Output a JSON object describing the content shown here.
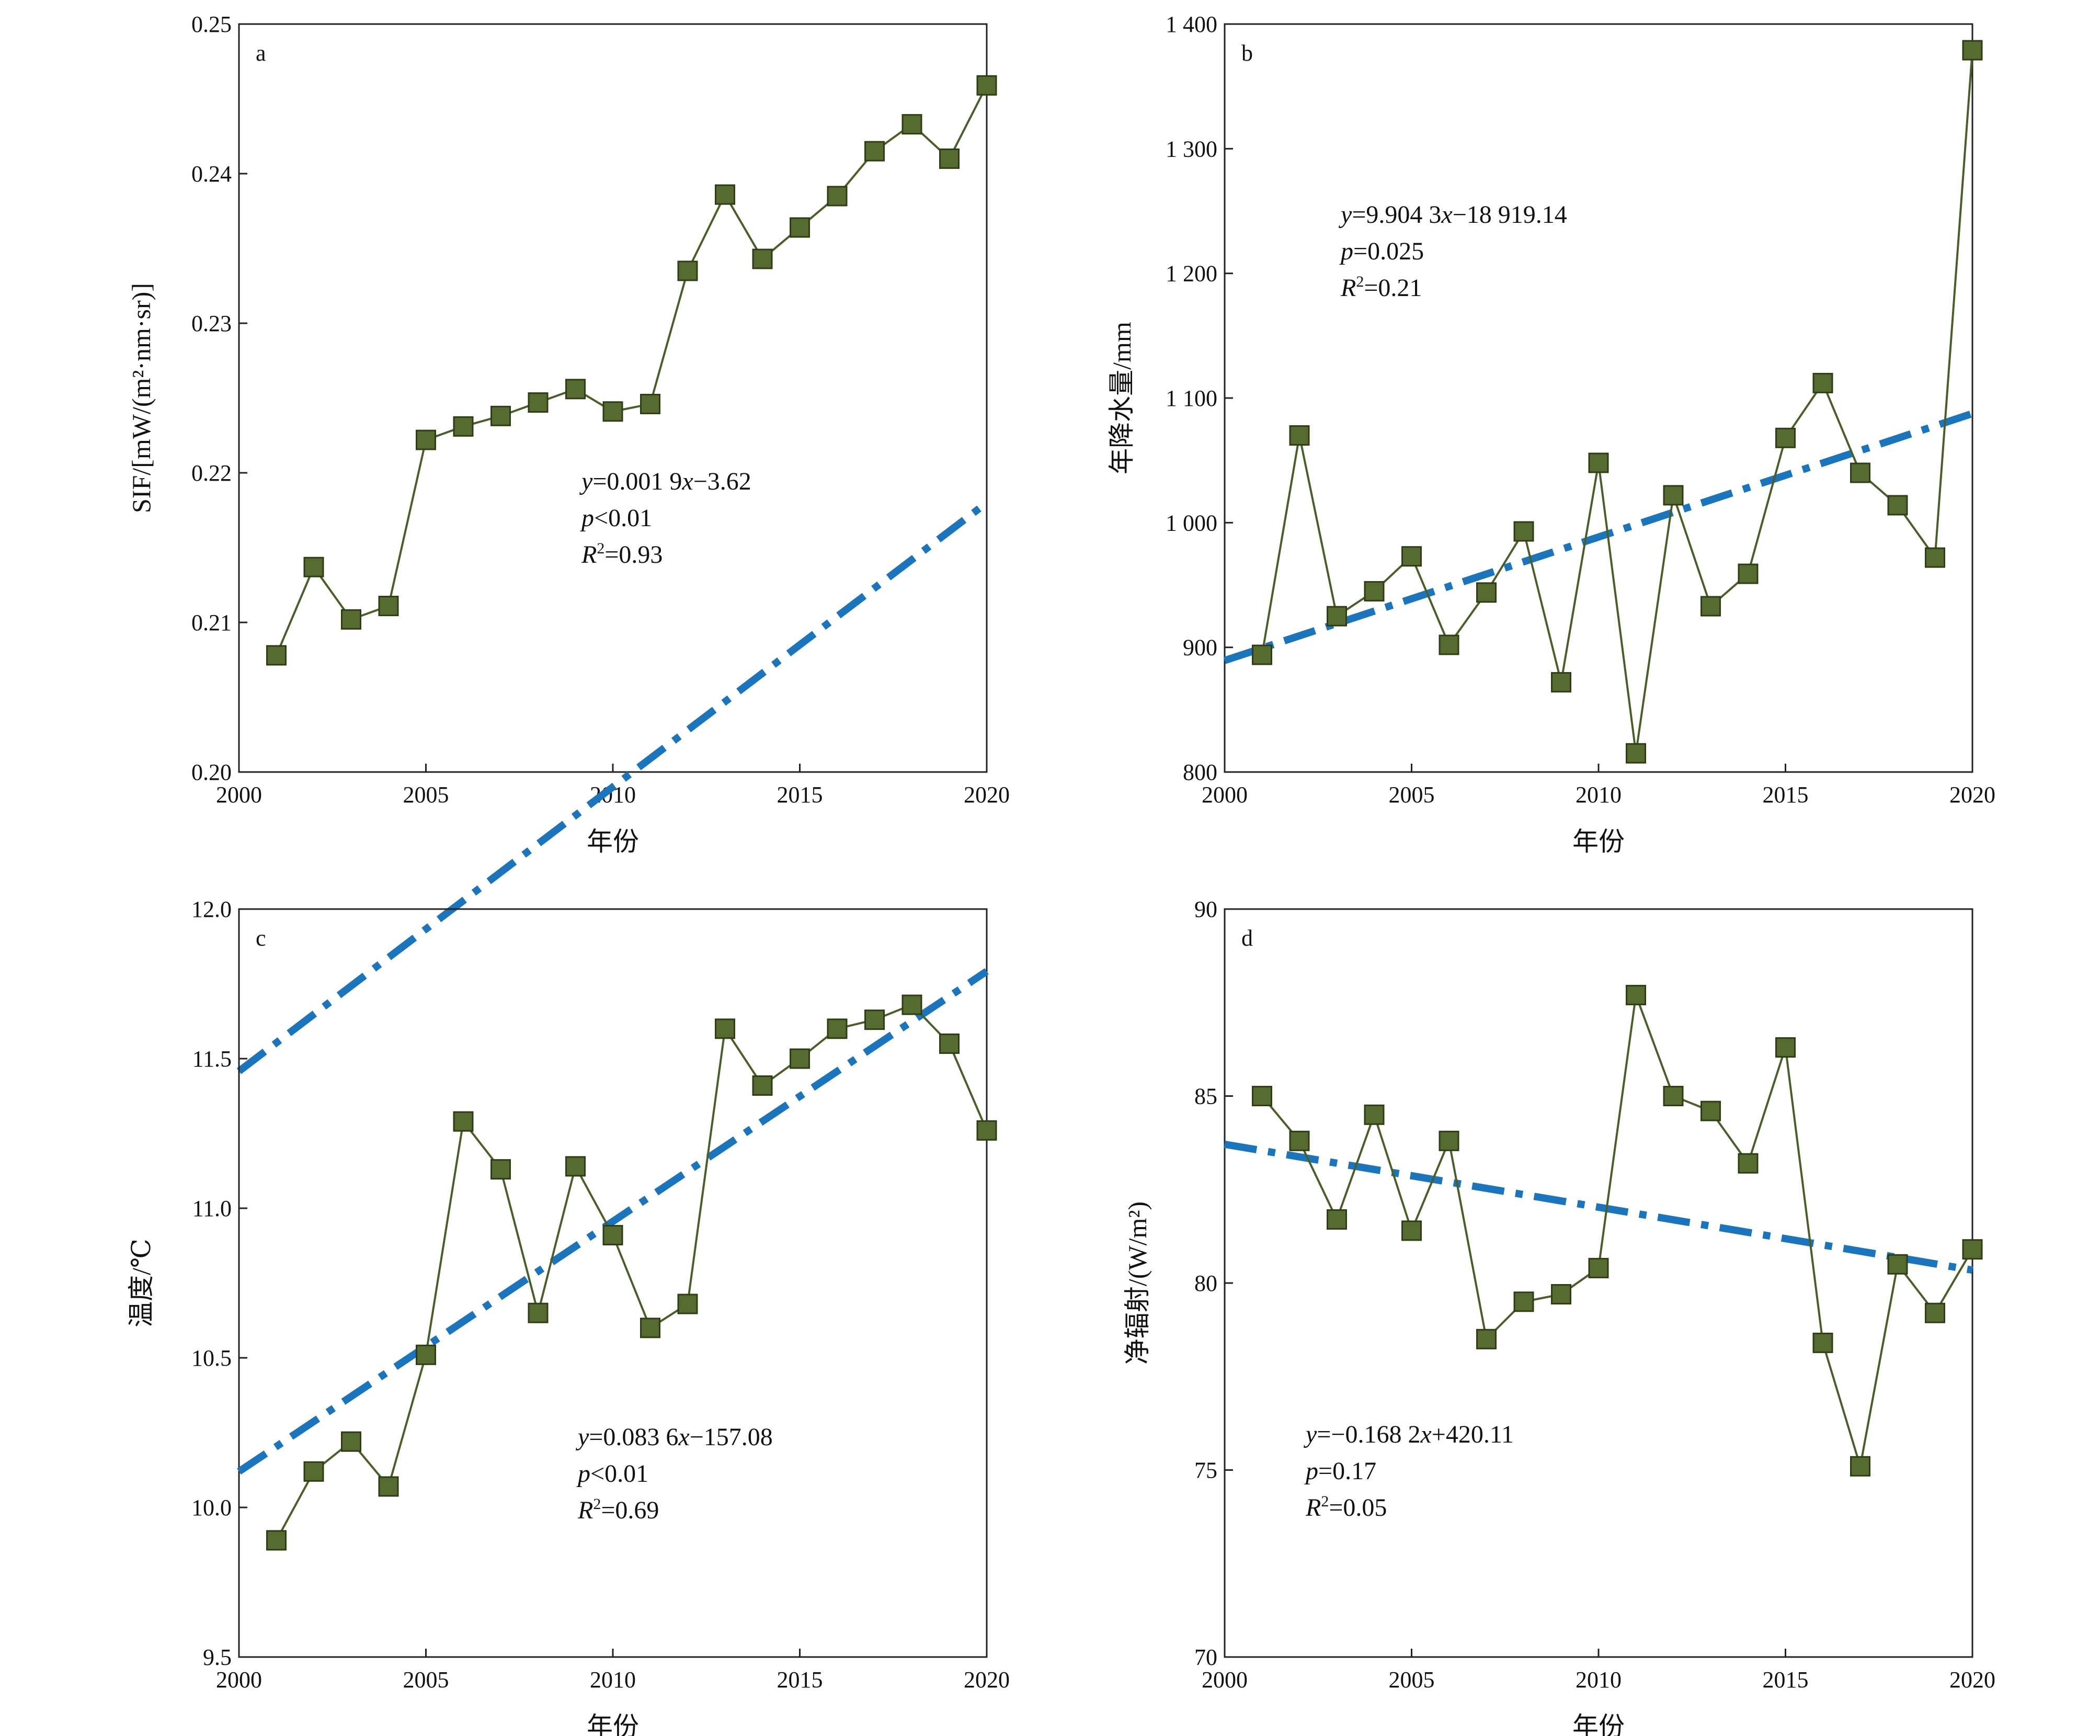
{
  "chart_data": [
    {
      "type": "line",
      "panel": "a",
      "xlabel": "年份",
      "ylabel": "SIF/[mW/(m²·nm·sr)]",
      "xlim": [
        2000,
        2020
      ],
      "ylim": [
        0.2,
        0.25
      ],
      "xticks": [
        2000,
        2005,
        2010,
        2015,
        2020
      ],
      "yticks": [
        0.2,
        0.21,
        0.22,
        0.23,
        0.24,
        0.25
      ],
      "ytick_labels": [
        "0.20",
        "0.21",
        "0.22",
        "0.23",
        "0.24",
        "0.25"
      ],
      "x": [
        2001,
        2002,
        2003,
        2004,
        2005,
        2006,
        2007,
        2008,
        2009,
        2010,
        2011,
        2012,
        2013,
        2014,
        2015,
        2016,
        2017,
        2018,
        2019,
        2020
      ],
      "values": [
        0.2078,
        0.2137,
        0.2102,
        0.2111,
        0.2222,
        0.2231,
        0.2238,
        0.2247,
        0.2256,
        0.2241,
        0.2246,
        0.2335,
        0.2386,
        0.2343,
        0.2364,
        0.2385,
        0.2415,
        0.2433,
        0.241,
        0.2459
      ],
      "trend": {
        "slope": 0.0019,
        "intercept": -3.62
      },
      "annotation": {
        "eq_prefix": "y",
        "eq_body": "=0.001 9",
        "eq_var": "x",
        "eq_tail": "−3.62",
        "p_sym": "p",
        "p_text": "<0.01",
        "r_sym": "R",
        "r_text": "=0.93"
      }
    },
    {
      "type": "line",
      "panel": "b",
      "xlabel": "年份",
      "ylabel": "年降水量/mm",
      "xlim": [
        2000,
        2020
      ],
      "ylim": [
        800,
        1400
      ],
      "xticks": [
        2000,
        2005,
        2010,
        2015,
        2020
      ],
      "yticks": [
        800,
        900,
        1000,
        1100,
        1200,
        1300,
        1400
      ],
      "ytick_labels": [
        "800",
        "900",
        "1 000",
        "1 100",
        "1 200",
        "1 300",
        "1 400"
      ],
      "x": [
        2001,
        2002,
        2003,
        2004,
        2005,
        2006,
        2007,
        2008,
        2009,
        2010,
        2011,
        2012,
        2013,
        2014,
        2015,
        2016,
        2017,
        2018,
        2019,
        2020
      ],
      "values": [
        894,
        1070,
        925,
        945,
        973,
        902,
        944,
        993,
        872,
        1048,
        815,
        1022,
        933,
        959,
        1068,
        1112,
        1040,
        1014,
        972,
        1379
      ],
      "trend": {
        "slope": 9.9043,
        "intercept": -18919.14
      },
      "annotation": {
        "eq_prefix": "y",
        "eq_body": "=9.904 3",
        "eq_var": "x",
        "eq_tail": "−18 919.14",
        "p_sym": "p",
        "p_text": "=0.025",
        "r_sym": "R",
        "r_text": "=0.21"
      }
    },
    {
      "type": "line",
      "panel": "c",
      "xlabel": "年份",
      "ylabel": "温度/℃",
      "xlim": [
        2000,
        2020
      ],
      "ylim": [
        9.5,
        12.0
      ],
      "xticks": [
        2000,
        2005,
        2010,
        2015,
        2020
      ],
      "yticks": [
        9.5,
        10.0,
        10.5,
        11.0,
        11.5,
        12.0
      ],
      "ytick_labels": [
        "9.5",
        "10.0",
        "10.5",
        "11.0",
        "11.5",
        "12.0"
      ],
      "x": [
        2001,
        2002,
        2003,
        2004,
        2005,
        2006,
        2007,
        2008,
        2009,
        2010,
        2011,
        2012,
        2013,
        2014,
        2015,
        2016,
        2017,
        2018,
        2019,
        2020
      ],
      "values": [
        9.89,
        10.12,
        10.22,
        10.07,
        10.51,
        11.29,
        11.13,
        10.65,
        11.14,
        10.91,
        10.6,
        10.68,
        11.6,
        11.41,
        11.5,
        11.6,
        11.63,
        11.68,
        11.55,
        11.26
      ],
      "trend": {
        "slope": 0.0836,
        "intercept": -157.08
      },
      "annotation": {
        "eq_prefix": "y",
        "eq_body": "=0.083 6",
        "eq_var": "x",
        "eq_tail": "−157.08",
        "p_sym": "p",
        "p_text": "<0.01",
        "r_sym": "R",
        "r_text": "=0.69"
      }
    },
    {
      "type": "line",
      "panel": "d",
      "xlabel": "年份",
      "ylabel": "净辐射/(W/m²)",
      "xlim": [
        2000,
        2020
      ],
      "ylim": [
        70,
        90
      ],
      "xticks": [
        2000,
        2005,
        2010,
        2015,
        2020
      ],
      "yticks": [
        70,
        75,
        80,
        85,
        90
      ],
      "ytick_labels": [
        "70",
        "75",
        "80",
        "85",
        "90"
      ],
      "x": [
        2001,
        2002,
        2003,
        2004,
        2005,
        2006,
        2007,
        2008,
        2009,
        2010,
        2011,
        2012,
        2013,
        2014,
        2015,
        2016,
        2017,
        2018,
        2019,
        2020
      ],
      "values": [
        85.0,
        83.8,
        81.7,
        84.5,
        81.4,
        83.8,
        78.5,
        79.5,
        79.7,
        80.4,
        87.7,
        85.0,
        84.6,
        83.2,
        86.3,
        78.4,
        75.1,
        80.5,
        79.2,
        80.9
      ],
      "trend": {
        "slope": -0.1682,
        "intercept": 420.11
      },
      "annotation": {
        "eq_prefix": "y",
        "eq_body": "=−0.168 2",
        "eq_var": "x",
        "eq_tail": "+420.11",
        "p_sym": "p",
        "p_text": "=0.17",
        "r_sym": "R",
        "r_text": "=0.05"
      }
    }
  ],
  "colors": {
    "line": "#4a5e28",
    "marker_fill": "#566b2f",
    "marker_edge": "#2f3c16",
    "trend": "#1b75bc"
  }
}
